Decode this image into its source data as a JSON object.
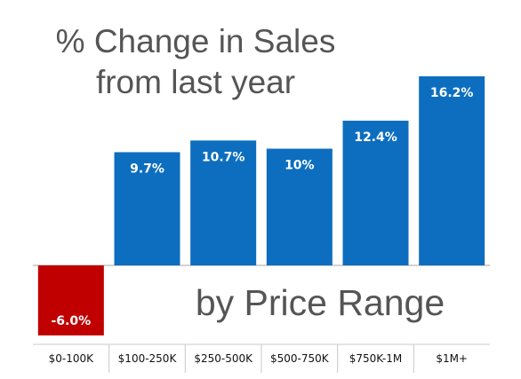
{
  "chart_data": {
    "type": "bar",
    "title": "% Change in Sales",
    "title_line2": "from last year",
    "subtitle": "by Price Range",
    "categories": [
      "$0-100K",
      "$100-250K",
      "$250-500K",
      "$500-750K",
      "$750K-1M",
      "$1M+"
    ],
    "values": [
      -6.0,
      9.7,
      10.7,
      10,
      12.4,
      16.2
    ],
    "data_labels": [
      "-6.0%",
      "9.7%",
      "10.7%",
      "10%",
      "12.4%",
      "16.2%"
    ],
    "ylim": [
      -6.0,
      16.2
    ],
    "grid": false,
    "colors": {
      "positive": "#0d6ebf",
      "negative": "#c00000",
      "axis": "#a6a6a6",
      "divider": "#c8c8c8"
    }
  }
}
